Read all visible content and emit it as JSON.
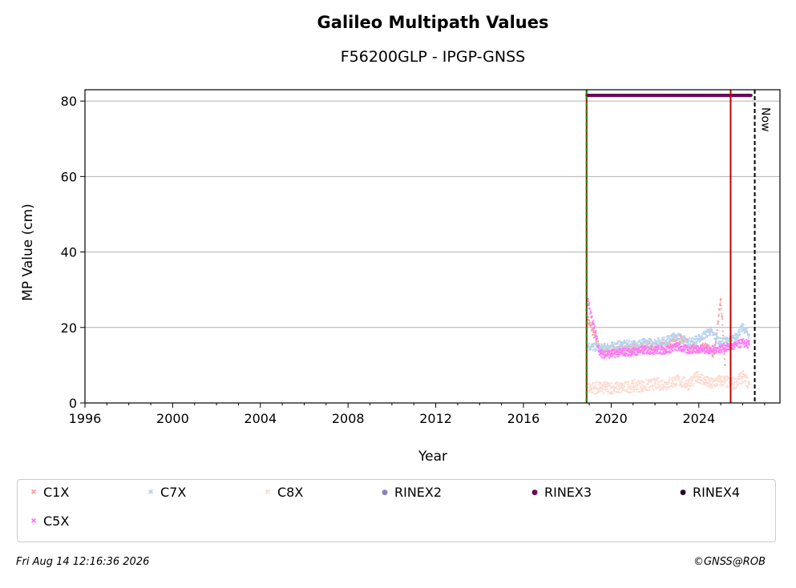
{
  "chart_data": {
    "type": "scatter",
    "title": "Galileo Multipath Values",
    "subtitle": "F56200GLP - IPGP-GNSS",
    "xlabel": "Year",
    "ylabel": "MP Value (cm)",
    "xlim": [
      1996,
      2027.7
    ],
    "ylim": [
      0,
      83
    ],
    "x_ticks": [
      1996,
      2000,
      2004,
      2008,
      2012,
      2016,
      2020,
      2024
    ],
    "y_ticks": [
      0,
      20,
      40,
      60,
      80
    ],
    "grid": "y",
    "legend_position": "bottom",
    "series": [
      {
        "name": "C1X",
        "color": "#f4a6a6",
        "marker": "x",
        "x": [
          2018.95,
          2019.5,
          2020.5,
          2021.5,
          2022.5,
          2023.2,
          2023.9,
          2024.3,
          2024.7,
          2025.0,
          2025.2
        ],
        "y": [
          22,
          14,
          14,
          15,
          15,
          17,
          14,
          15,
          13,
          27.5,
          10
        ]
      },
      {
        "name": "C7X",
        "color": "#b9d3ec",
        "marker": "x",
        "x": [
          2018.95,
          2019.5,
          2020.0,
          2020.5,
          2021.0,
          2021.5,
          2022.0,
          2022.5,
          2023.0,
          2023.5,
          2024.0,
          2024.5,
          2025.0,
          2025.6,
          2026.0,
          2026.3
        ],
        "y": [
          15,
          14.5,
          15,
          15.5,
          15.5,
          16,
          16,
          16.5,
          18,
          16,
          17,
          19,
          16,
          17,
          20,
          18
        ]
      },
      {
        "name": "C8X",
        "color": "#fddbd0",
        "marker": "x",
        "x": [
          2018.95,
          2019.5,
          2020.0,
          2020.5,
          2021.0,
          2021.5,
          2022.0,
          2022.5,
          2023.0,
          2023.5,
          2024.0,
          2024.5,
          2025.0,
          2025.6,
          2026.0,
          2026.3
        ],
        "y": [
          4,
          4,
          4,
          4,
          4.5,
          4.5,
          5,
          5,
          6,
          5,
          7,
          5,
          6,
          5,
          7,
          5
        ]
      },
      {
        "name": "RINEX2",
        "color": "#8c7fc0",
        "marker": "o",
        "x": [],
        "y": []
      },
      {
        "name": "RINEX3",
        "color": "#6a0a5a",
        "marker": "o",
        "x_range": [
          2018.9,
          2026.4
        ],
        "y": 81.5
      },
      {
        "name": "RINEX4",
        "color": "#2a0a2a",
        "marker": "o",
        "x": [],
        "y": []
      },
      {
        "name": "C5X",
        "color": "#ff7af8",
        "marker": "x",
        "x": [
          2018.95,
          2019.5,
          2020.0,
          2020.5,
          2021.0,
          2021.5,
          2022.0,
          2022.5,
          2023.0,
          2023.5,
          2024.0,
          2024.5,
          2025.6,
          2026.0,
          2026.3
        ],
        "y": [
          27,
          13,
          13,
          13.5,
          13.5,
          14,
          14,
          14,
          15,
          14,
          14.5,
          14,
          15,
          16,
          15.5
        ]
      }
    ],
    "vertical_lines": [
      {
        "x": 2018.88,
        "color": "#c00000",
        "style": "solid"
      },
      {
        "x": 2018.88,
        "color": "#0a8a0a",
        "style": "dashed"
      },
      {
        "x": 2025.45,
        "color": "#c00000",
        "style": "solid"
      },
      {
        "x": 2026.55,
        "color": "#000000",
        "style": "dashed",
        "label": "Now"
      }
    ]
  },
  "footer": {
    "timestamp": "Fri Aug 14 12:16:36 2026",
    "credit": "©GNSS@ROB"
  }
}
